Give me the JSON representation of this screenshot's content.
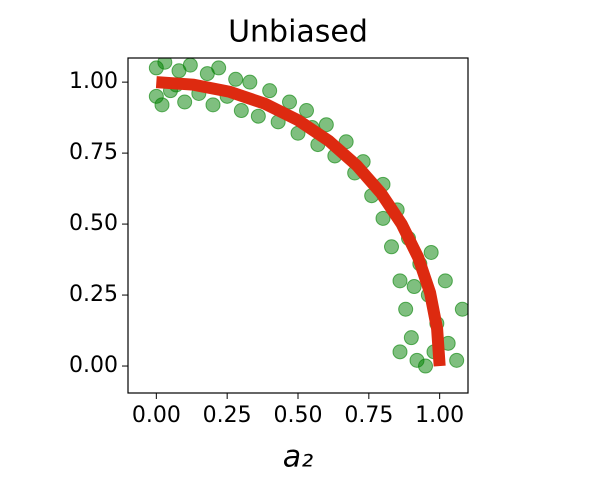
{
  "chart_data": {
    "type": "scatter",
    "title": "Unbiased",
    "x_label": "a₂",
    "xlim": [
      -0.1,
      1.1
    ],
    "ylim": [
      -0.095,
      1.085
    ],
    "xticks": [
      {
        "value": 0,
        "label": "0.00"
      },
      {
        "value": 0.25,
        "label": "0.25"
      },
      {
        "value": 0.5,
        "label": "0.50"
      },
      {
        "value": 0.75,
        "label": "0.75"
      },
      {
        "value": 1,
        "label": "1.00"
      }
    ],
    "yticks": [
      {
        "value": 0,
        "label": "0.00"
      },
      {
        "value": 0.25,
        "label": "0.25"
      },
      {
        "value": 0.5,
        "label": "0.50"
      },
      {
        "value": 0.75,
        "label": "0.75"
      },
      {
        "value": 1,
        "label": "1.00"
      }
    ],
    "series": [
      {
        "type": "scatter",
        "color": "#008000",
        "x": [
          0.0,
          0.0,
          0.02,
          0.03,
          0.05,
          0.08,
          0.1,
          0.12,
          0.15,
          0.18,
          0.2,
          0.22,
          0.25,
          0.28,
          0.3,
          0.33,
          0.36,
          0.4,
          0.43,
          0.47,
          0.5,
          0.53,
          0.57,
          0.6,
          0.63,
          0.67,
          0.7,
          0.73,
          0.76,
          0.8,
          0.8,
          0.85,
          0.83,
          0.89,
          0.86,
          0.93,
          0.88,
          0.96,
          0.9,
          0.99,
          0.92,
          1.03,
          0.95,
          1.06,
          1.02,
          0.86,
          1.08,
          0.97,
          0.07,
          0.55,
          0.91,
          0.98
        ],
        "y": [
          0.95,
          1.05,
          0.92,
          1.07,
          0.97,
          1.04,
          0.93,
          1.06,
          0.96,
          1.03,
          0.92,
          1.05,
          0.95,
          1.01,
          0.9,
          1.0,
          0.88,
          0.97,
          0.86,
          0.93,
          0.82,
          0.9,
          0.78,
          0.85,
          0.74,
          0.79,
          0.68,
          0.72,
          0.6,
          0.64,
          0.52,
          0.55,
          0.42,
          0.45,
          0.3,
          0.36,
          0.2,
          0.25,
          0.1,
          0.15,
          0.02,
          0.08,
          0.0,
          0.02,
          0.3,
          0.05,
          0.2,
          0.4,
          0.99,
          0.84,
          0.28,
          0.05
        ]
      },
      {
        "type": "line",
        "color": "#dd2a10",
        "x": [
          0,
          0.131,
          0.259,
          0.383,
          0.5,
          0.609,
          0.707,
          0.793,
          0.866,
          0.924,
          0.966,
          0.991,
          1
        ],
        "y": [
          1,
          0.991,
          0.966,
          0.924,
          0.866,
          0.793,
          0.707,
          0.609,
          0.5,
          0.383,
          0.259,
          0.131,
          0
        ]
      }
    ]
  }
}
